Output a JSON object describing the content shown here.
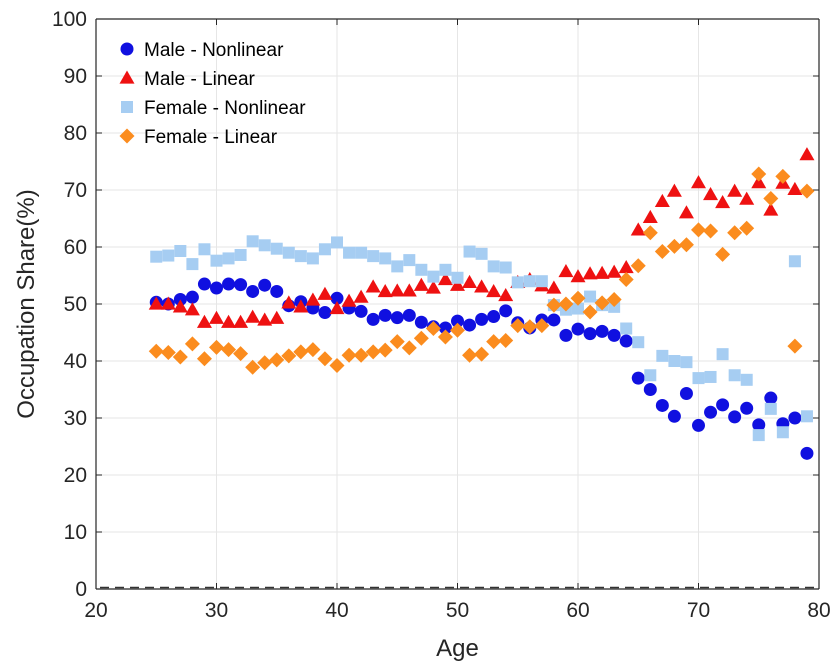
{
  "chart_data": {
    "type": "scatter",
    "xlabel": "Age",
    "ylabel": "Occupation Share(%)",
    "xlim": [
      20,
      80
    ],
    "ylim": [
      0,
      100
    ],
    "xticks": [
      20,
      30,
      40,
      50,
      60,
      70,
      80
    ],
    "yticks": [
      0,
      10,
      20,
      30,
      40,
      50,
      60,
      70,
      80,
      90,
      100
    ],
    "grid": true,
    "legend_position": "top-left",
    "reference_line": {
      "y": 0,
      "style": "dashed"
    },
    "x": [
      25,
      26,
      27,
      28,
      29,
      30,
      31,
      32,
      33,
      34,
      35,
      36,
      37,
      38,
      39,
      40,
      41,
      42,
      43,
      44,
      45,
      46,
      47,
      48,
      49,
      50,
      51,
      52,
      53,
      54,
      55,
      56,
      57,
      58,
      59,
      60,
      61,
      62,
      63,
      64,
      65,
      66,
      67,
      68,
      69,
      70,
      71,
      72,
      73,
      74,
      75,
      76,
      77,
      78,
      79
    ],
    "series": [
      {
        "name": "Male - Nonlinear",
        "marker": "circle",
        "color": "#1010e0",
        "values": [
          50.3,
          50.0,
          50.8,
          51.2,
          53.5,
          52.8,
          53.5,
          53.4,
          52.2,
          53.3,
          52.2,
          49.7,
          50.4,
          49.3,
          48.5,
          51.0,
          49.3,
          48.7,
          47.3,
          48.0,
          47.6,
          48.0,
          46.8,
          46.0,
          45.8,
          47.0,
          46.3,
          47.3,
          47.8,
          48.8,
          46.7,
          45.8,
          47.2,
          47.2,
          44.5,
          45.6,
          44.8,
          45.2,
          44.5,
          43.5,
          37.0,
          35.0,
          32.2,
          30.3,
          34.3,
          28.7,
          31.0,
          32.3,
          30.2,
          31.7,
          28.8,
          33.5,
          29.0,
          30.0,
          23.8
        ]
      },
      {
        "name": "Male - Linear",
        "marker": "triangle",
        "color": "#ee1111",
        "values": [
          50.0,
          50.0,
          49.5,
          49.0,
          46.8,
          47.5,
          46.8,
          46.8,
          47.7,
          47.2,
          47.5,
          50.2,
          49.5,
          50.7,
          51.7,
          49.2,
          50.5,
          51.2,
          53.0,
          52.2,
          52.3,
          52.3,
          53.3,
          52.8,
          54.3,
          53.3,
          53.8,
          53.0,
          52.2,
          51.5,
          53.8,
          54.3,
          53.2,
          52.8,
          55.7,
          54.8,
          55.3,
          55.4,
          55.6,
          56.4,
          63.0,
          65.2,
          68.0,
          69.8,
          66.0,
          71.3,
          69.2,
          67.8,
          69.8,
          68.4,
          71.3,
          66.5,
          71.2,
          70.1,
          76.2
        ]
      },
      {
        "name": "Female - Nonlinear",
        "marker": "square",
        "color": "#a6cdf2",
        "values": [
          58.3,
          58.5,
          59.3,
          57.0,
          59.6,
          57.6,
          58.0,
          58.6,
          61.0,
          60.3,
          59.7,
          59.0,
          58.4,
          58.0,
          59.6,
          60.8,
          59.0,
          59.0,
          58.4,
          58.0,
          56.6,
          57.7,
          56.0,
          54.8,
          56.0,
          54.6,
          59.2,
          58.8,
          56.6,
          56.4,
          53.8,
          54.0,
          54.0,
          49.8,
          49.0,
          49.2,
          51.3,
          49.8,
          49.5,
          45.7,
          43.3,
          37.5,
          40.9,
          40.0,
          39.8,
          37.0,
          37.2,
          41.2,
          37.5,
          36.7,
          27.0,
          31.6,
          27.5,
          57.5,
          30.3
        ]
      },
      {
        "name": "Female - Linear",
        "marker": "diamond",
        "color": "#fb8c1e",
        "values": [
          41.7,
          41.5,
          40.7,
          43.0,
          40.4,
          42.4,
          42.0,
          41.3,
          38.9,
          39.7,
          40.2,
          40.9,
          41.6,
          42.0,
          40.4,
          39.2,
          41.0,
          41.0,
          41.6,
          41.9,
          43.4,
          42.3,
          44.0,
          45.7,
          44.2,
          45.4,
          41.0,
          41.2,
          43.4,
          43.6,
          46.2,
          46.0,
          46.2,
          49.8,
          50.0,
          51.0,
          48.6,
          50.2,
          50.8,
          54.3,
          56.7,
          62.5,
          59.2,
          60.1,
          60.4,
          63.0,
          62.8,
          58.7,
          62.5,
          63.3,
          72.8,
          68.5,
          72.4,
          42.6,
          69.8
        ]
      }
    ]
  }
}
